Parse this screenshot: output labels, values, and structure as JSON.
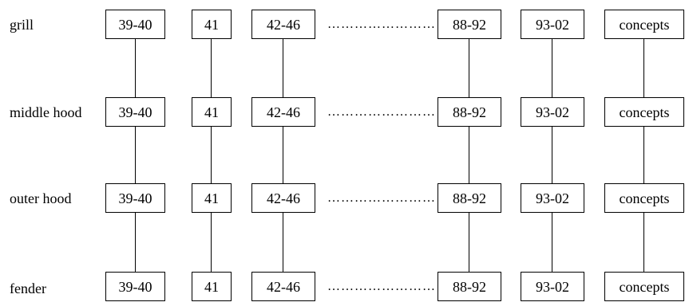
{
  "rows": [
    {
      "label": "grill"
    },
    {
      "label": "middle hood"
    },
    {
      "label": "outer hood"
    },
    {
      "label": "fender"
    }
  ],
  "columns": [
    {
      "label": "39-40"
    },
    {
      "label": "41"
    },
    {
      "label": "42-46"
    },
    {
      "label": "88-92"
    },
    {
      "label": "93-02"
    },
    {
      "label": "concepts"
    }
  ],
  "ellipsis": "……………………"
}
